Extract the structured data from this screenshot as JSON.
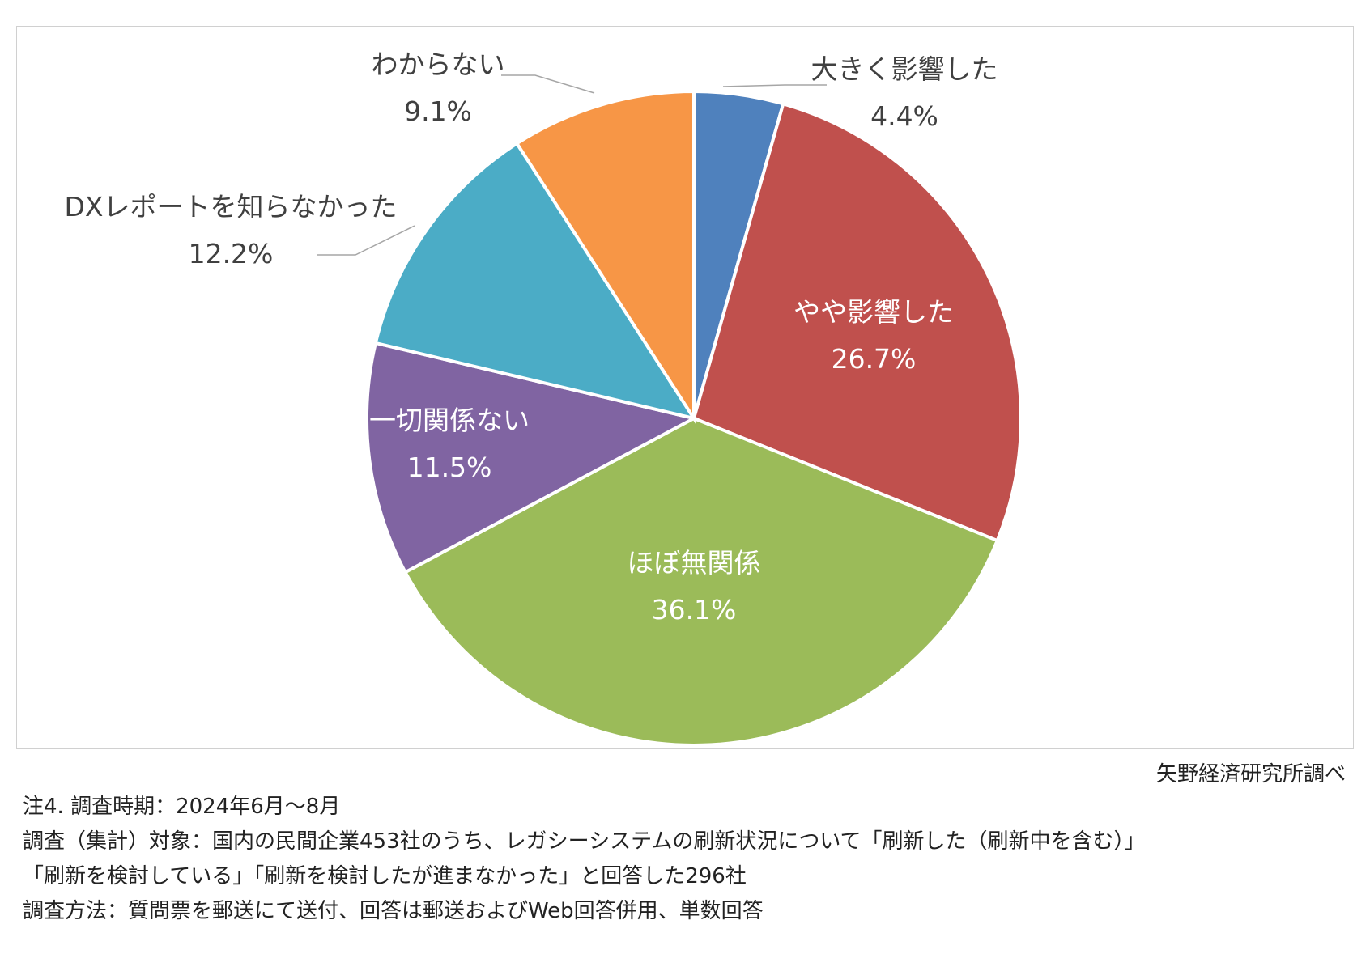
{
  "chart_data": {
    "type": "pie",
    "slices": [
      {
        "label": "大きく影響した",
        "value_label": "4.4%",
        "value": 4.4,
        "color": "#4f81bd",
        "label_style": "outside"
      },
      {
        "label": "やや影響した",
        "value_label": "26.7%",
        "value": 26.7,
        "color": "#c0504d",
        "label_style": "inside"
      },
      {
        "label": "ほぼ無関係",
        "value_label": "36.1%",
        "value": 36.1,
        "color": "#9bbb59",
        "label_style": "inside"
      },
      {
        "label": "一切関係ない",
        "value_label": "11.5%",
        "value": 11.5,
        "color": "#8064a2",
        "label_style": "inside"
      },
      {
        "label": "DXレポートを知らなかった",
        "value_label": "12.2%",
        "value": 12.2,
        "color": "#4bacc6",
        "label_style": "outside"
      },
      {
        "label": "わからない",
        "value_label": "9.1%",
        "value": 9.1,
        "color": "#f79646",
        "label_style": "outside"
      }
    ],
    "start_angle": "12 o'clock",
    "direction": "clockwise",
    "legend": "none"
  },
  "source": "矢野経済研究所調べ",
  "notes": [
    "注4.  調査時期：2024年6月～8月",
    "調査（集計）対象：国内の民間企業453社のうち、レガシーシステムの刷新状況について「刷新した（刷新中を含む）」",
    "「刷新を検討している」「刷新を検討したが進まなかった」と回答した296社",
    "調査方法：質問票を郵送にて送付、回答は郵送およびWeb回答併用、単数回答"
  ]
}
